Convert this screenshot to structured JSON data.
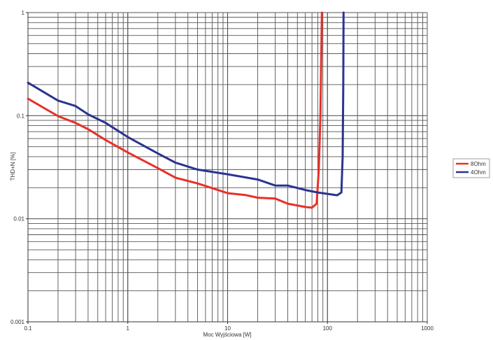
{
  "chart_data": {
    "type": "line",
    "title": "",
    "xlabel": "Moc Wyjściowa [W]",
    "ylabel": "THD+N [%]",
    "xscale": "log",
    "yscale": "log",
    "xlim": [
      0.1,
      1000
    ],
    "ylim": [
      0.001,
      1
    ],
    "x_tick_labels": [
      "0.1",
      "1",
      "10",
      "100",
      "1000"
    ],
    "y_tick_labels": [
      "0.001",
      "0.01",
      "0.1",
      "1"
    ],
    "grid": true,
    "legend_position": "right",
    "series": [
      {
        "name": "8Ohm",
        "color": "#e8302a",
        "points": [
          [
            0.1,
            0.146
          ],
          [
            0.2,
            0.099
          ],
          [
            0.3,
            0.085
          ],
          [
            0.4,
            0.074
          ],
          [
            0.6,
            0.058
          ],
          [
            1,
            0.044
          ],
          [
            2,
            0.031
          ],
          [
            3,
            0.025
          ],
          [
            5,
            0.022
          ],
          [
            10,
            0.0177
          ],
          [
            15,
            0.017
          ],
          [
            20,
            0.016
          ],
          [
            30,
            0.0157
          ],
          [
            40,
            0.014
          ],
          [
            60,
            0.013
          ],
          [
            70,
            0.0128
          ],
          [
            78,
            0.014
          ],
          [
            82,
            0.03
          ],
          [
            85,
            0.1
          ],
          [
            88,
            1
          ]
        ]
      },
      {
        "name": "4Ohm",
        "color": "#2b3390",
        "points": [
          [
            0.1,
            0.209
          ],
          [
            0.2,
            0.14
          ],
          [
            0.3,
            0.124
          ],
          [
            0.4,
            0.103
          ],
          [
            0.6,
            0.085
          ],
          [
            1,
            0.062
          ],
          [
            2,
            0.043
          ],
          [
            3,
            0.035
          ],
          [
            5,
            0.03
          ],
          [
            10,
            0.027
          ],
          [
            20,
            0.024
          ],
          [
            30,
            0.021
          ],
          [
            40,
            0.021
          ],
          [
            60,
            0.019
          ],
          [
            80,
            0.018
          ],
          [
            125,
            0.0169
          ],
          [
            138,
            0.018
          ],
          [
            142,
            0.04
          ],
          [
            144,
            0.2
          ],
          [
            145,
            1
          ]
        ]
      }
    ]
  },
  "legend": {
    "items": [
      {
        "label": "8Ohm",
        "color": "#e8302a"
      },
      {
        "label": "4Ohm",
        "color": "#2b3390"
      }
    ]
  }
}
